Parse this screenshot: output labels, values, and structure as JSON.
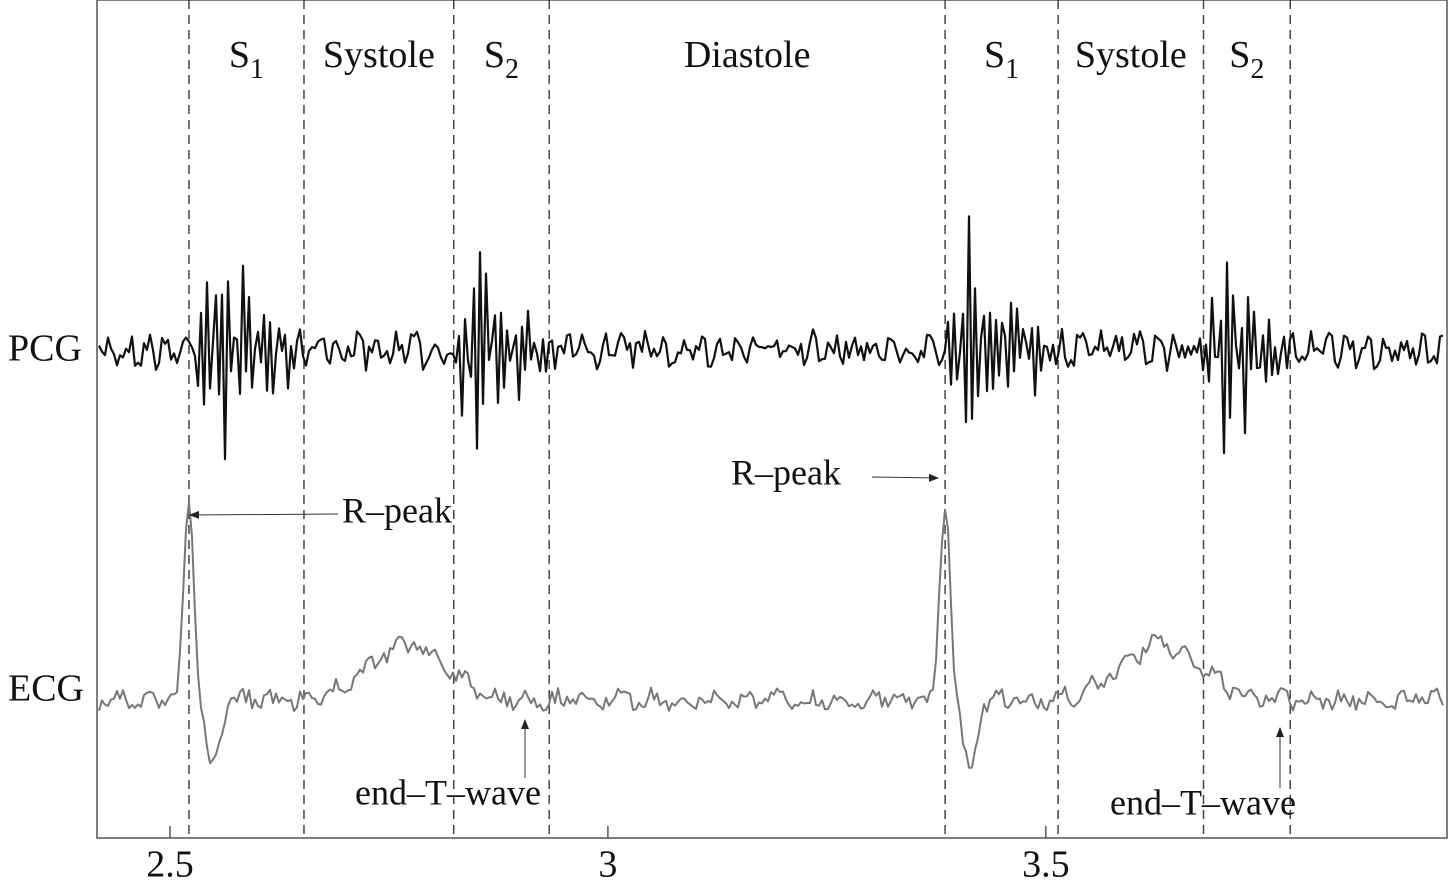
{
  "chart_data": {
    "type": "line",
    "xlim": [
      2.4167,
      3.958
    ],
    "xticks": [
      2.5,
      3,
      3.5
    ],
    "boundaries": [
      2.5217,
      2.653,
      2.824,
      2.933,
      3.385,
      3.514,
      3.68,
      3.779
    ],
    "segments": [
      {
        "label": "S",
        "sub": "1"
      },
      {
        "label": "Systole"
      },
      {
        "label": "S",
        "sub": "2"
      },
      {
        "label": "Diastole"
      },
      {
        "label": "S",
        "sub": "1"
      },
      {
        "label": "Systole"
      },
      {
        "label": "S",
        "sub": "2"
      }
    ],
    "signals": [
      "PCG",
      "ECG"
    ],
    "annotations": [
      "R–peak",
      "R–peak",
      "end–T–wave",
      "end–T–wave"
    ]
  }
}
